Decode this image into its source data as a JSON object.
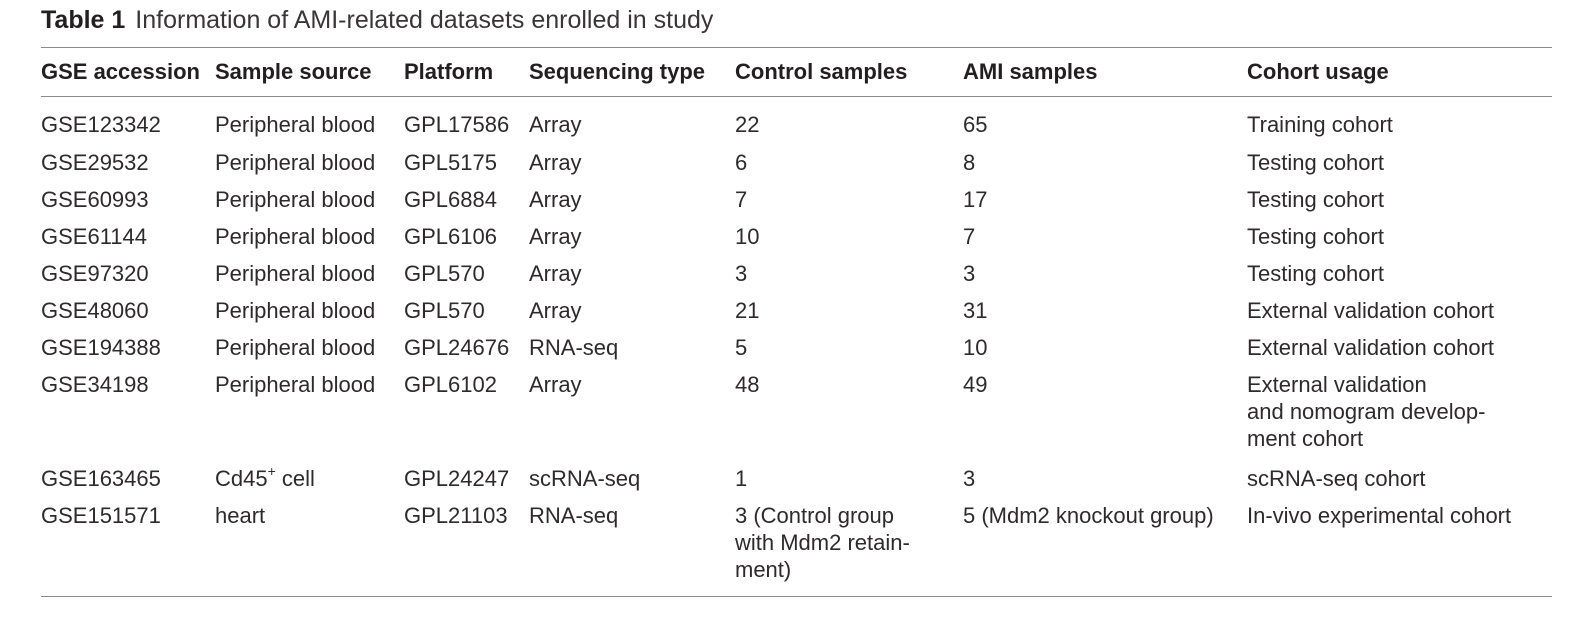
{
  "caption": {
    "label": "Table 1",
    "title": "Information of AMI-related datasets enrolled in study"
  },
  "headers": {
    "gse": "GSE accession",
    "source": "Sample source",
    "platform": "Platform",
    "seqtype": "Sequencing type",
    "control": "Control samples",
    "ami": "AMI samples",
    "usage": "Cohort usage"
  },
  "rows": [
    {
      "gse": "GSE123342",
      "source": "Peripheral blood",
      "platform": "GPL17586",
      "seqtype": "Array",
      "control": "22",
      "ami": "65",
      "usage": "Training cohort"
    },
    {
      "gse": "GSE29532",
      "source": "Peripheral blood",
      "platform": "GPL5175",
      "seqtype": "Array",
      "control": "6",
      "ami": "8",
      "usage": "Testing cohort"
    },
    {
      "gse": "GSE60993",
      "source": "Peripheral blood",
      "platform": "GPL6884",
      "seqtype": "Array",
      "control": "7",
      "ami": "17",
      "usage": "Testing cohort"
    },
    {
      "gse": "GSE61144",
      "source": "Peripheral blood",
      "platform": "GPL6106",
      "seqtype": "Array",
      "control": "10",
      "ami": "7",
      "usage": "Testing cohort"
    },
    {
      "gse": "GSE97320",
      "source": "Peripheral blood",
      "platform": "GPL570",
      "seqtype": "Array",
      "control": "3",
      "ami": "3",
      "usage": "Testing cohort"
    },
    {
      "gse": "GSE48060",
      "source": "Peripheral blood",
      "platform": "GPL570",
      "seqtype": "Array",
      "control": "21",
      "ami": "31",
      "usage": "External validation cohort"
    },
    {
      "gse": "GSE194388",
      "source": "Peripheral blood",
      "platform": "GPL24676",
      "seqtype": "RNA-seq",
      "control": "5",
      "ami": "10",
      "usage": "External validation cohort"
    },
    {
      "gse": "GSE34198",
      "source": "Peripheral blood",
      "platform": "GPL6102",
      "seqtype": "Array",
      "control": "48",
      "ami": "49",
      "usage_lines": [
        "External validation",
        "and nomogram develop-",
        "ment cohort"
      ]
    },
    {
      "gse": "GSE163465",
      "source_main": "Cd45",
      "source_sup": "+",
      "source_rest": " cell",
      "platform": "GPL24247",
      "seqtype": "scRNA-seq",
      "control": "1",
      "ami": "3",
      "usage": "scRNA-seq cohort"
    },
    {
      "gse": "GSE151571",
      "source": "heart",
      "platform": "GPL21103",
      "seqtype": "RNA-seq",
      "control_lines": [
        "3 (Control group",
        "with Mdm2 retain-",
        "ment)"
      ],
      "ami": "5 (Mdm2 knockout group)",
      "usage": "In-vivo experimental cohort"
    }
  ]
}
